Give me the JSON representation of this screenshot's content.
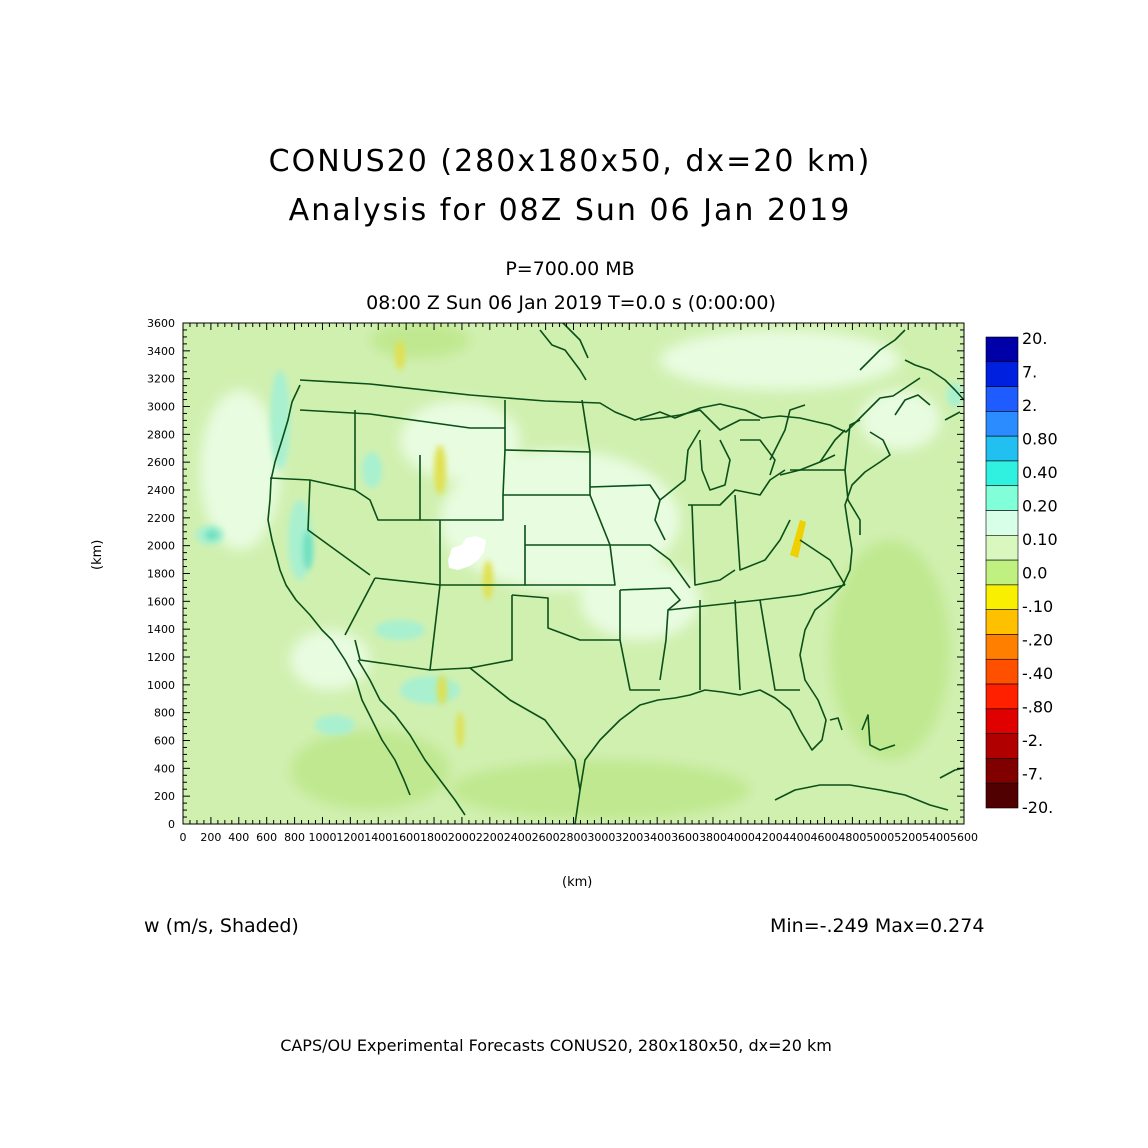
{
  "title": "CONUS20 (280x180x50, dx=20 km)",
  "subtitle": "Analysis for 08Z Sun 06 Jan 2019",
  "level": "P=700.00 MB",
  "valid_time": "08:00 Z Sun 06 Jan 2019    T=0.0 s (0:00:00)",
  "axes": {
    "xlabel": "(km)",
    "ylabel": "(km)",
    "x_ticks": [
      "0",
      "200",
      "400",
      "600",
      "800",
      "1000",
      "1200",
      "1400",
      "1600",
      "1800",
      "2000",
      "2200",
      "2400",
      "2600",
      "2800",
      "3000",
      "3200",
      "3400",
      "3600",
      "3800",
      "4000",
      "4200",
      "4400",
      "4600",
      "4800",
      "5000",
      "5200",
      "5400",
      "5600"
    ],
    "y_ticks": [
      "0",
      "200",
      "400",
      "600",
      "800",
      "1000",
      "1200",
      "1400",
      "1600",
      "1800",
      "2000",
      "2200",
      "2400",
      "2600",
      "2800",
      "3000",
      "3200",
      "3400",
      "3600"
    ],
    "xlim": [
      0,
      5600
    ],
    "ylim": [
      0,
      3600
    ]
  },
  "colorbar": {
    "labels": [
      "20.",
      "7.",
      "2.",
      "0.80",
      "0.40",
      "0.20",
      "0.10",
      "0.0",
      "-.10",
      "-.20",
      "-.40",
      "-.80",
      "-2.",
      "-7.",
      "-20."
    ],
    "colors": [
      "#0000a8",
      "#0020e0",
      "#1e5cff",
      "#2a8cff",
      "#22c0f0",
      "#30f0e0",
      "#80ffd8",
      "#d8ffe8",
      "#d8f8c0",
      "#c0f080",
      "#f8f000",
      "#ffc000",
      "#ff8000",
      "#ff5000",
      "#ff2000",
      "#e00000",
      "#b00000",
      "#800000",
      "#500000"
    ]
  },
  "field_colors": {
    "background": "#d0f0b0",
    "light": "#e8fce0",
    "slight_negative": "#c0e890",
    "positive": "#a8f0d0",
    "stronger_positive": "#70e0c0",
    "negative": "#e0e050",
    "strong_negative": "#f0d000",
    "undefined": "#ffffff",
    "state_lines": "#0a5018"
  },
  "variable": "w (m/s, Shaded)",
  "minmax": "Min=-.249  Max=0.274",
  "footer": "CAPS/OU Experimental Forecasts   CONUS20, 280x180x50, dx=20 km"
}
